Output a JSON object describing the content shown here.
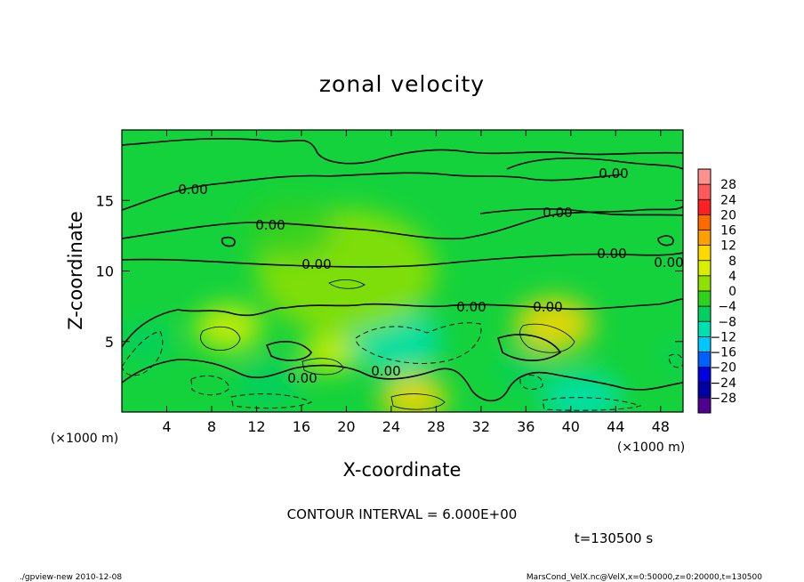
{
  "chart_data": {
    "type": "heatmap",
    "title": "zonal velocity",
    "xlabel": "X-coordinate",
    "ylabel": "Z-coordinate",
    "x_unit": "(×1000 m)",
    "y_unit": "(×1000 m)",
    "xlim": [
      0,
      50
    ],
    "ylim": [
      0,
      20
    ],
    "x_ticks": [
      "4",
      "8",
      "12",
      "16",
      "20",
      "24",
      "28",
      "32",
      "36",
      "40",
      "44",
      "48"
    ],
    "y_ticks": [
      "5",
      "10",
      "15"
    ],
    "contour_interval_text": "CONTOUR INTERVAL = 6.000E+00",
    "contour_labels": [
      "0.00",
      "0.00",
      "0.00",
      "0.00",
      "0.00",
      "0.00",
      "0.00",
      "0.00",
      "0.00",
      "0.00",
      "0.00"
    ],
    "time_text": "t=130500 s",
    "colorbar": {
      "labels": [
        "28",
        "24",
        "20",
        "16",
        "12",
        "8",
        "4",
        "0",
        "−4",
        "−8",
        "−12",
        "−16",
        "−20",
        "−24",
        "−28"
      ],
      "colors": [
        "#ff9090",
        "#ff5a5a",
        "#ff2020",
        "#ff6a00",
        "#ffa000",
        "#ffd800",
        "#d8f000",
        "#90e000",
        "#30d020",
        "#00d060",
        "#00e0b0",
        "#00c8ff",
        "#0060ff",
        "#0000e0",
        "#0000a0",
        "#500090"
      ]
    },
    "features": [
      {
        "x": 9.5,
        "z": 6.0,
        "value": 4,
        "r": 3.0
      },
      {
        "x": 18.5,
        "z": 4.2,
        "value": 5,
        "r": 2.5
      },
      {
        "x": 26.0,
        "z": 1.0,
        "value": 8,
        "r": 3.0
      },
      {
        "x": 38.5,
        "z": 6.2,
        "value": 7,
        "r": 3.5
      },
      {
        "x": 24.5,
        "z": 5.0,
        "value": -12,
        "r": 4.0
      },
      {
        "x": 36.0,
        "z": 3.0,
        "value": -8,
        "r": 2.5
      },
      {
        "x": 41.0,
        "z": 1.0,
        "value": -10,
        "r": 3.5
      },
      {
        "x": 13.0,
        "z": 2.0,
        "value": -7,
        "r": 3.0
      },
      {
        "x": 2.0,
        "z": 5.0,
        "value": -9,
        "r": 2.5
      },
      {
        "x": 49.5,
        "z": 4.0,
        "value": -7,
        "r": 1.5
      },
      {
        "x": 20.0,
        "z": 10.0,
        "value": 2,
        "r": 8.0
      },
      {
        "x": 15.0,
        "z": 13.0,
        "value": -3,
        "r": 4.0
      }
    ]
  },
  "footer": {
    "left": "./gpview-new 2010-12-08",
    "right": "MarsCond_VelX.nc@VelX,x=0:50000,z=0:20000,t=130500"
  }
}
